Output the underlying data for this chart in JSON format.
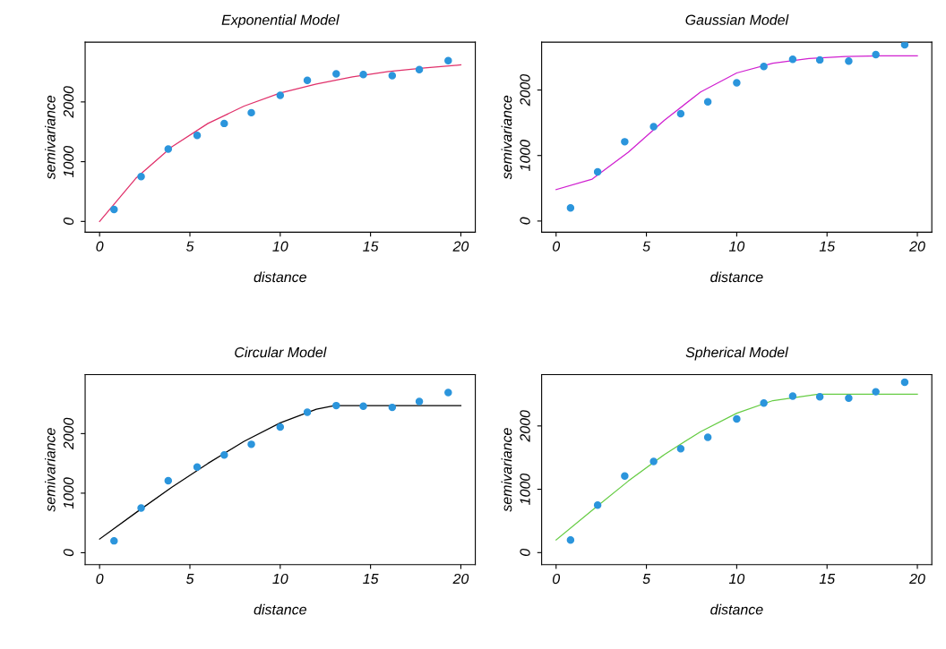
{
  "chart_data": [
    {
      "type": "scatter",
      "title": "Exponential Model",
      "xlabel": "distance",
      "ylabel": "semivariance",
      "xlim": [
        -0.8,
        20.8
      ],
      "ylim": [
        -180,
        3000
      ],
      "xticks": [
        0,
        5,
        10,
        15,
        20
      ],
      "yticks": [
        0,
        1000,
        2000
      ],
      "grid": false,
      "legend": false,
      "series": [
        {
          "marker": "circle",
          "color": "#2b95dc",
          "x": [
            0.8,
            2.3,
            3.8,
            5.4,
            6.9,
            8.4,
            10.0,
            11.5,
            13.1,
            14.6,
            16.2,
            17.7,
            19.3
          ],
          "values": [
            200,
            750,
            1210,
            1440,
            1640,
            1820,
            2110,
            2360,
            2470,
            2460,
            2440,
            2540,
            2690
          ]
        },
        {
          "type": "line",
          "color": "#e0306a",
          "x": [
            0,
            2,
            4,
            6,
            8,
            10,
            12,
            14,
            16,
            18,
            20
          ],
          "values": [
            0,
            720,
            1250,
            1640,
            1930,
            2150,
            2300,
            2420,
            2510,
            2570,
            2620
          ]
        }
      ]
    },
    {
      "type": "scatter",
      "title": "Gaussian Model",
      "xlabel": "distance",
      "ylabel": "semivariance",
      "xlim": [
        -0.8,
        20.8
      ],
      "ylim": [
        -170,
        2730
      ],
      "xticks": [
        0,
        5,
        10,
        15,
        20
      ],
      "yticks": [
        0,
        1000,
        2000
      ],
      "grid": false,
      "legend": false,
      "series": [
        {
          "marker": "circle",
          "color": "#2b95dc",
          "x": [
            0.8,
            2.3,
            3.8,
            5.4,
            6.9,
            8.4,
            10.0,
            11.5,
            13.1,
            14.6,
            16.2,
            17.7,
            19.3
          ],
          "values": [
            200,
            750,
            1210,
            1440,
            1640,
            1820,
            2110,
            2360,
            2470,
            2460,
            2440,
            2540,
            2690
          ]
        },
        {
          "type": "line",
          "color": "#d020d0",
          "x": [
            0,
            2,
            4,
            6,
            8,
            10,
            12,
            14,
            16,
            18,
            20
          ],
          "values": [
            480,
            640,
            1050,
            1540,
            1970,
            2260,
            2410,
            2480,
            2510,
            2520,
            2520
          ]
        }
      ]
    },
    {
      "type": "scatter",
      "title": "Circular Model",
      "xlabel": "distance",
      "ylabel": "semivariance",
      "xlim": [
        -0.8,
        20.8
      ],
      "ylim": [
        -200,
        2990
      ],
      "xticks": [
        0,
        5,
        10,
        15,
        20
      ],
      "yticks": [
        0,
        1000,
        2000
      ],
      "grid": false,
      "legend": false,
      "series": [
        {
          "marker": "circle",
          "color": "#2b95dc",
          "x": [
            0.8,
            2.3,
            3.8,
            5.4,
            6.9,
            8.4,
            10.0,
            11.5,
            13.1,
            14.6,
            16.2,
            17.7,
            19.3
          ],
          "values": [
            200,
            750,
            1210,
            1440,
            1640,
            1820,
            2110,
            2360,
            2470,
            2460,
            2440,
            2540,
            2690
          ]
        },
        {
          "type": "line",
          "color": "#000000",
          "x": [
            0,
            2,
            4,
            6,
            8,
            10,
            12,
            13,
            20
          ],
          "values": [
            230,
            670,
            1100,
            1500,
            1870,
            2180,
            2410,
            2470,
            2470
          ]
        }
      ]
    },
    {
      "type": "scatter",
      "title": "Spherical Model",
      "xlabel": "distance",
      "ylabel": "semivariance",
      "xlim": [
        -0.8,
        20.8
      ],
      "ylim": [
        -190,
        2810
      ],
      "xticks": [
        0,
        5,
        10,
        15,
        20
      ],
      "yticks": [
        0,
        1000,
        2000
      ],
      "grid": false,
      "legend": false,
      "series": [
        {
          "marker": "circle",
          "color": "#2b95dc",
          "x": [
            0.8,
            2.3,
            3.8,
            5.4,
            6.9,
            8.4,
            10.0,
            11.5,
            13.1,
            14.6,
            16.2,
            17.7,
            19.3
          ],
          "values": [
            200,
            750,
            1210,
            1440,
            1640,
            1820,
            2110,
            2360,
            2470,
            2460,
            2440,
            2540,
            2690
          ]
        },
        {
          "type": "line",
          "color": "#66cc44",
          "x": [
            0,
            2,
            4,
            6,
            8,
            10,
            12,
            14.5,
            20
          ],
          "values": [
            200,
            670,
            1130,
            1550,
            1910,
            2200,
            2400,
            2500,
            2500
          ]
        }
      ]
    }
  ]
}
